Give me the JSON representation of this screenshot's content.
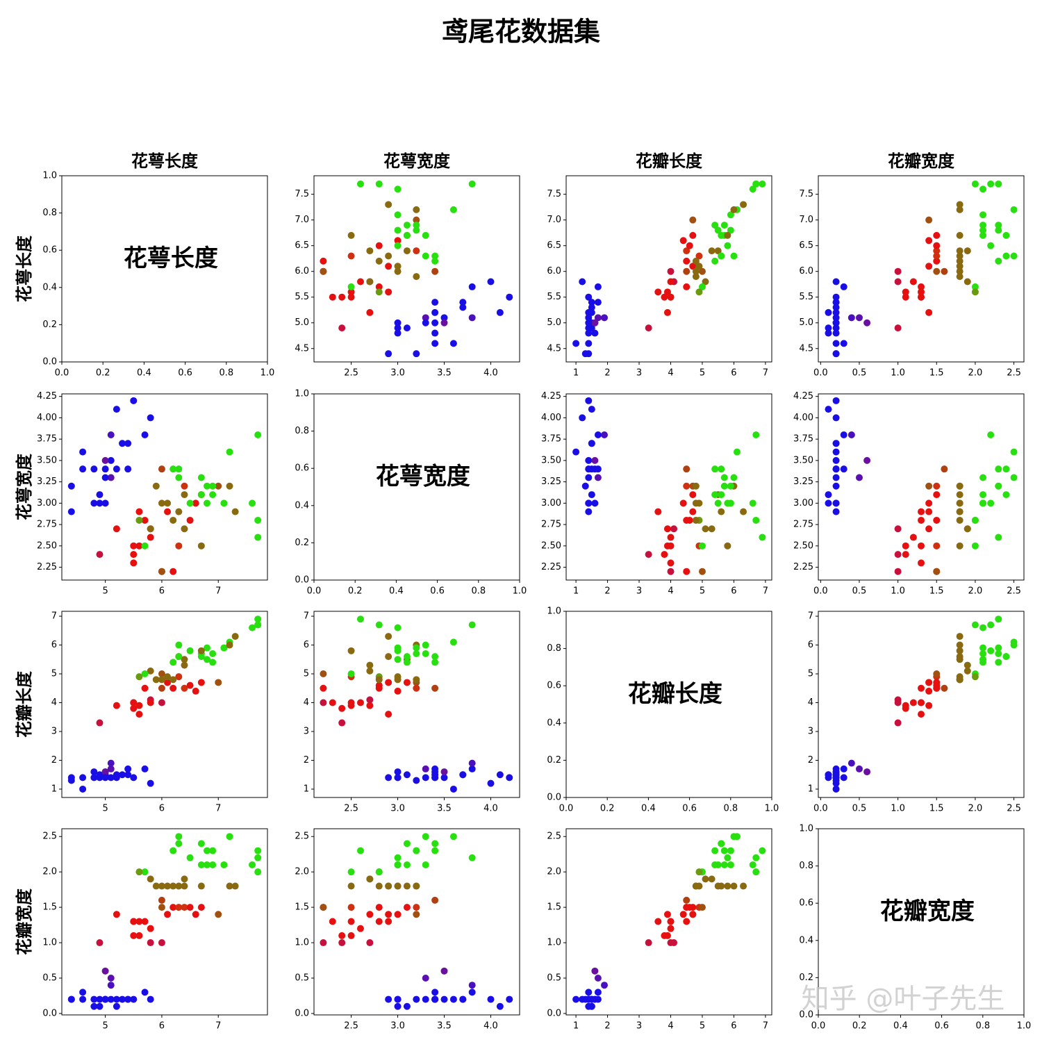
{
  "title": "鸢尾花数据集",
  "watermark": "知乎 @叶子先生",
  "dataset": {
    "columns": [
      "花萼长度",
      "花萼宽度",
      "花瓣长度",
      "花瓣宽度"
    ],
    "rows": [
      {
        "values": [
          5.1,
          3.5,
          1.4,
          0.2
        ],
        "color": "#1a0ee6"
      },
      {
        "values": [
          4.9,
          3.0,
          1.4,
          0.2
        ],
        "color": "#1a0ee6"
      },
      {
        "values": [
          4.6,
          3.4,
          1.4,
          0.3
        ],
        "color": "#1a0ee6"
      },
      {
        "values": [
          5.0,
          3.4,
          1.5,
          0.2
        ],
        "color": "#1a0ee6"
      },
      {
        "values": [
          4.4,
          2.9,
          1.4,
          0.2
        ],
        "color": "#1a0ee6"
      },
      {
        "values": [
          5.4,
          3.7,
          1.5,
          0.2
        ],
        "color": "#1a0ee6"
      },
      {
        "values": [
          4.8,
          3.4,
          1.6,
          0.2
        ],
        "color": "#1a0ee6"
      },
      {
        "values": [
          5.8,
          4.0,
          1.2,
          0.2
        ],
        "color": "#1a0ee6"
      },
      {
        "values": [
          5.7,
          3.8,
          1.7,
          0.3
        ],
        "color": "#1a0ee6"
      },
      {
        "values": [
          5.4,
          3.4,
          1.7,
          0.2
        ],
        "color": "#1a0ee6"
      },
      {
        "values": [
          4.6,
          3.6,
          1.0,
          0.2
        ],
        "color": "#1a0ee6"
      },
      {
        "values": [
          5.1,
          3.3,
          1.7,
          0.5
        ],
        "color": "#5a0fb0"
      },
      {
        "values": [
          5.0,
          3.0,
          1.6,
          0.2
        ],
        "color": "#1a0ee6"
      },
      {
        "values": [
          5.2,
          3.4,
          1.4,
          0.2
        ],
        "color": "#1a0ee6"
      },
      {
        "values": [
          5.5,
          4.2,
          1.4,
          0.2
        ],
        "color": "#1a0ee6"
      },
      {
        "values": [
          5.2,
          4.1,
          1.5,
          0.1
        ],
        "color": "#1a0ee6"
      },
      {
        "values": [
          4.9,
          3.1,
          1.5,
          0.1
        ],
        "color": "#1a0ee6"
      },
      {
        "values": [
          5.0,
          3.5,
          1.6,
          0.6
        ],
        "color": "#6a10a0"
      },
      {
        "values": [
          4.4,
          3.2,
          1.3,
          0.2
        ],
        "color": "#1a0ee6"
      },
      {
        "values": [
          5.1,
          3.8,
          1.9,
          0.4
        ],
        "color": "#4a10c0"
      },
      {
        "values": [
          5.3,
          3.7,
          1.5,
          0.2
        ],
        "color": "#1a0ee6"
      },
      {
        "values": [
          5.0,
          3.3,
          1.4,
          0.2
        ],
        "color": "#1a0ee6"
      },
      {
        "values": [
          4.8,
          3.0,
          1.4,
          0.1
        ],
        "color": "#1a0ee6"
      },
      {
        "values": [
          7.0,
          3.2,
          4.7,
          1.4
        ],
        "color": "#a05010"
      },
      {
        "values": [
          6.4,
          3.2,
          4.5,
          1.5
        ],
        "color": "#d03010"
      },
      {
        "values": [
          5.5,
          2.3,
          4.0,
          1.3
        ],
        "color": "#e61010"
      },
      {
        "values": [
          6.5,
          2.8,
          4.6,
          1.5
        ],
        "color": "#e61010"
      },
      {
        "values": [
          5.7,
          2.8,
          4.5,
          1.3
        ],
        "color": "#e61010"
      },
      {
        "values": [
          4.9,
          2.4,
          3.3,
          1.0
        ],
        "color": "#c8103c"
      },
      {
        "values": [
          5.2,
          2.7,
          3.9,
          1.4
        ],
        "color": "#e61010"
      },
      {
        "values": [
          6.0,
          2.2,
          4.0,
          1.0
        ],
        "color": "#c8103c"
      },
      {
        "values": [
          6.1,
          2.9,
          4.7,
          1.4
        ],
        "color": "#e61010"
      },
      {
        "values": [
          5.6,
          2.9,
          3.6,
          1.3
        ],
        "color": "#e61010"
      },
      {
        "values": [
          5.8,
          2.7,
          4.1,
          1.0
        ],
        "color": "#c8103c"
      },
      {
        "values": [
          6.2,
          2.2,
          4.5,
          1.5
        ],
        "color": "#e61010"
      },
      {
        "values": [
          5.6,
          2.5,
          3.9,
          1.1
        ],
        "color": "#e61010"
      },
      {
        "values": [
          5.9,
          3.2,
          4.8,
          1.8
        ],
        "color": "#8a6a10"
      },
      {
        "values": [
          6.3,
          2.5,
          4.9,
          1.5
        ],
        "color": "#d03010"
      },
      {
        "values": [
          6.6,
          3.0,
          4.4,
          1.4
        ],
        "color": "#e61010"
      },
      {
        "values": [
          5.5,
          2.4,
          3.8,
          1.1
        ],
        "color": "#e61010"
      },
      {
        "values": [
          5.5,
          2.5,
          4.0,
          1.3
        ],
        "color": "#e61010"
      },
      {
        "values": [
          6.0,
          3.4,
          4.5,
          1.6
        ],
        "color": "#b04010"
      },
      {
        "values": [
          6.7,
          3.1,
          4.7,
          1.5
        ],
        "color": "#e61010"
      },
      {
        "values": [
          5.8,
          2.6,
          4.0,
          1.2
        ],
        "color": "#e61010"
      },
      {
        "values": [
          6.3,
          3.3,
          6.0,
          2.5
        ],
        "color": "#28e010"
      },
      {
        "values": [
          5.8,
          2.7,
          5.1,
          1.9
        ],
        "color": "#8a6a10"
      },
      {
        "values": [
          7.1,
          3.0,
          5.9,
          2.1
        ],
        "color": "#28e010"
      },
      {
        "values": [
          6.3,
          2.9,
          5.6,
          1.8
        ],
        "color": "#8a6a10"
      },
      {
        "values": [
          6.5,
          3.0,
          5.8,
          2.2
        ],
        "color": "#28e010"
      },
      {
        "values": [
          7.6,
          3.0,
          6.6,
          2.1
        ],
        "color": "#28e010"
      },
      {
        "values": [
          7.3,
          2.9,
          6.3,
          1.8
        ],
        "color": "#8a6a10"
      },
      {
        "values": [
          7.2,
          3.6,
          6.1,
          2.5
        ],
        "color": "#28e010"
      },
      {
        "values": [
          6.4,
          2.7,
          5.3,
          1.9
        ],
        "color": "#8a6a10"
      },
      {
        "values": [
          6.8,
          3.0,
          5.5,
          2.1
        ],
        "color": "#28e010"
      },
      {
        "values": [
          5.7,
          2.5,
          5.0,
          2.0
        ],
        "color": "#28e010"
      },
      {
        "values": [
          7.7,
          3.8,
          6.7,
          2.2
        ],
        "color": "#28e010"
      },
      {
        "values": [
          7.7,
          2.6,
          6.9,
          2.3
        ],
        "color": "#28e010"
      },
      {
        "values": [
          6.0,
          2.2,
          5.0,
          1.5
        ],
        "color": "#a05010"
      },
      {
        "values": [
          6.9,
          3.2,
          5.7,
          2.3
        ],
        "color": "#28e010"
      },
      {
        "values": [
          5.6,
          2.8,
          4.9,
          2.0
        ],
        "color": "#6a9a10"
      },
      {
        "values": [
          7.7,
          2.8,
          6.7,
          2.0
        ],
        "color": "#28e010"
      },
      {
        "values": [
          6.7,
          3.3,
          5.7,
          2.1
        ],
        "color": "#28e010"
      },
      {
        "values": [
          7.2,
          3.2,
          6.0,
          1.8
        ],
        "color": "#8a6a10"
      },
      {
        "values": [
          6.2,
          2.8,
          4.8,
          1.8
        ],
        "color": "#8a6a10"
      },
      {
        "values": [
          6.1,
          3.0,
          4.9,
          1.8
        ],
        "color": "#8a6a10"
      },
      {
        "values": [
          6.4,
          3.1,
          5.5,
          1.8
        ],
        "color": "#8a6a10"
      },
      {
        "values": [
          6.0,
          3.0,
          4.8,
          1.8
        ],
        "color": "#8a6a10"
      },
      {
        "values": [
          6.9,
          3.1,
          5.4,
          2.1
        ],
        "color": "#28e010"
      },
      {
        "values": [
          6.7,
          3.1,
          5.6,
          2.4
        ],
        "color": "#28e010"
      },
      {
        "values": [
          6.8,
          3.2,
          5.9,
          2.3
        ],
        "color": "#28e010"
      },
      {
        "values": [
          6.7,
          2.5,
          5.8,
          1.8
        ],
        "color": "#8a6a10"
      },
      {
        "values": [
          6.3,
          3.4,
          5.6,
          2.4
        ],
        "color": "#28e010"
      },
      {
        "values": [
          6.2,
          3.4,
          5.4,
          2.3
        ],
        "color": "#28e010"
      }
    ]
  },
  "chart_data": [
    {
      "type": "label",
      "xlim": [
        0,
        1
      ],
      "ylim": [
        0,
        1
      ],
      "xticks": [
        {
          "value": 0,
          "label": "0.0"
        },
        0.2,
        0.4,
        0.6,
        0.8,
        {
          "value": 1,
          "label": "1.0"
        }
      ],
      "yticks": [
        {
          "value": 0,
          "label": "0.0"
        },
        0.2,
        0.4,
        0.6,
        0.8,
        {
          "value": 1,
          "label": "1.0"
        }
      ]
    },
    {
      "type": "scatter",
      "xlim": [
        2.1,
        4.31
      ],
      "ylim": [
        4.24,
        7.86
      ],
      "xticks": [
        2.5,
        {
          "value": 3,
          "label": "3.0"
        },
        3.5,
        {
          "value": 4,
          "label": "4.0"
        }
      ],
      "yticks": [
        4.5,
        {
          "value": 5,
          "label": "5.0"
        },
        5.5,
        {
          "value": 6,
          "label": "6.0"
        },
        6.5,
        {
          "value": 7,
          "label": "7.0"
        },
        7.5
      ]
    },
    {
      "type": "scatter",
      "xlim": [
        0.69,
        7.2
      ],
      "ylim": [
        4.24,
        7.86
      ],
      "xticks": [
        1,
        2,
        3,
        4,
        5,
        6,
        7
      ],
      "yticks": [
        4.5,
        {
          "value": 5,
          "label": "5.0"
        },
        5.5,
        {
          "value": 6,
          "label": "6.0"
        },
        6.5,
        {
          "value": 7,
          "label": "7.0"
        },
        7.5
      ]
    },
    {
      "type": "scatter",
      "xlim": [
        -0.03,
        2.63
      ],
      "ylim": [
        4.24,
        7.86
      ],
      "xticks": [
        {
          "value": 0,
          "label": "0.0"
        },
        0.5,
        {
          "value": 1,
          "label": "1.0"
        },
        1.5,
        {
          "value": 2,
          "label": "2.0"
        },
        2.5
      ],
      "yticks": [
        4.5,
        {
          "value": 5,
          "label": "5.0"
        },
        5.5,
        {
          "value": 6,
          "label": "6.0"
        },
        6.5,
        {
          "value": 7,
          "label": "7.0"
        },
        7.5
      ]
    },
    {
      "type": "scatter",
      "xlim": [
        4.23,
        7.87
      ],
      "ylim": [
        2.1,
        4.28
      ],
      "xticks": [
        5,
        6,
        7
      ],
      "yticks": [
        2.25,
        {
          "value": 2.5,
          "label": "2.50"
        },
        2.75,
        {
          "value": 3,
          "label": "3.00"
        },
        3.25,
        {
          "value": 3.5,
          "label": "3.50"
        },
        3.75,
        {
          "value": 4,
          "label": "4.00"
        },
        4.25
      ]
    },
    {
      "type": "label",
      "xlim": [
        0,
        1
      ],
      "ylim": [
        0,
        1
      ],
      "xticks": [
        {
          "value": 0,
          "label": "0.0"
        },
        0.2,
        0.4,
        0.6,
        0.8,
        {
          "value": 1,
          "label": "1.0"
        }
      ],
      "yticks": [
        {
          "value": 0,
          "label": "0.0"
        },
        0.2,
        0.4,
        0.6,
        0.8,
        {
          "value": 1,
          "label": "1.0"
        }
      ]
    },
    {
      "type": "scatter",
      "xlim": [
        0.69,
        7.2
      ],
      "ylim": [
        2.1,
        4.28
      ],
      "xticks": [
        1,
        2,
        3,
        4,
        5,
        6,
        7
      ],
      "yticks": [
        2.25,
        {
          "value": 2.5,
          "label": "2.50"
        },
        2.75,
        {
          "value": 3,
          "label": "3.00"
        },
        3.25,
        {
          "value": 3.5,
          "label": "3.50"
        },
        3.75,
        {
          "value": 4,
          "label": "4.00"
        },
        4.25
      ]
    },
    {
      "type": "scatter",
      "xlim": [
        -0.03,
        2.63
      ],
      "ylim": [
        2.1,
        4.28
      ],
      "xticks": [
        {
          "value": 0,
          "label": "0.0"
        },
        0.5,
        {
          "value": 1,
          "label": "1.0"
        },
        1.5,
        {
          "value": 2,
          "label": "2.0"
        },
        2.5
      ],
      "yticks": [
        2.25,
        {
          "value": 2.5,
          "label": "2.50"
        },
        2.75,
        {
          "value": 3,
          "label": "3.00"
        },
        3.25,
        {
          "value": 3.5,
          "label": "3.50"
        },
        3.75,
        {
          "value": 4,
          "label": "4.00"
        },
        4.25
      ]
    },
    {
      "type": "scatter",
      "xlim": [
        4.23,
        7.87
      ],
      "ylim": [
        0.71,
        7.17
      ],
      "xticks": [
        5,
        6,
        7
      ],
      "yticks": [
        1,
        2,
        3,
        4,
        5,
        6,
        7
      ]
    },
    {
      "type": "scatter",
      "xlim": [
        2.1,
        4.31
      ],
      "ylim": [
        0.71,
        7.17
      ],
      "xticks": [
        2.5,
        {
          "value": 3,
          "label": "3.0"
        },
        3.5,
        {
          "value": 4,
          "label": "4.0"
        }
      ],
      "yticks": [
        1,
        2,
        3,
        4,
        5,
        6,
        7
      ]
    },
    {
      "type": "label",
      "xlim": [
        0,
        1
      ],
      "ylim": [
        0,
        1
      ],
      "xticks": [
        {
          "value": 0,
          "label": "0.0"
        },
        0.2,
        0.4,
        0.6,
        0.8,
        {
          "value": 1,
          "label": "1.0"
        }
      ],
      "yticks": [
        {
          "value": 0,
          "label": "0.0"
        },
        0.2,
        0.4,
        0.6,
        0.8,
        {
          "value": 1,
          "label": "1.0"
        }
      ]
    },
    {
      "type": "scatter",
      "xlim": [
        -0.03,
        2.63
      ],
      "ylim": [
        0.71,
        7.17
      ],
      "xticks": [
        {
          "value": 0,
          "label": "0.0"
        },
        0.5,
        {
          "value": 1,
          "label": "1.0"
        },
        1.5,
        {
          "value": 2,
          "label": "2.0"
        },
        2.5
      ],
      "yticks": [
        1,
        2,
        3,
        4,
        5,
        6,
        7
      ]
    },
    {
      "type": "scatter",
      "xlim": [
        4.23,
        7.87
      ],
      "ylim": [
        -0.02,
        2.61
      ],
      "xticks": [
        5,
        6,
        7
      ],
      "yticks": [
        {
          "value": 0,
          "label": "0.0"
        },
        0.5,
        {
          "value": 1,
          "label": "1.0"
        },
        1.5,
        {
          "value": 2,
          "label": "2.0"
        },
        2.5
      ]
    },
    {
      "type": "scatter",
      "xlim": [
        2.1,
        4.31
      ],
      "ylim": [
        -0.02,
        2.61
      ],
      "xticks": [
        2.5,
        {
          "value": 3,
          "label": "3.0"
        },
        3.5,
        {
          "value": 4,
          "label": "4.0"
        }
      ],
      "yticks": [
        {
          "value": 0,
          "label": "0.0"
        },
        0.5,
        {
          "value": 1,
          "label": "1.0"
        },
        1.5,
        {
          "value": 2,
          "label": "2.0"
        },
        2.5
      ]
    },
    {
      "type": "scatter",
      "xlim": [
        0.69,
        7.2
      ],
      "ylim": [
        -0.02,
        2.61
      ],
      "xticks": [
        1,
        2,
        3,
        4,
        5,
        6,
        7
      ],
      "yticks": [
        {
          "value": 0,
          "label": "0.0"
        },
        0.5,
        {
          "value": 1,
          "label": "1.0"
        },
        1.5,
        {
          "value": 2,
          "label": "2.0"
        },
        2.5
      ]
    },
    {
      "type": "label",
      "xlim": [
        0,
        1
      ],
      "ylim": [
        0,
        1
      ],
      "xticks": [
        {
          "value": 0,
          "label": "0.0"
        },
        0.2,
        0.4,
        0.6,
        0.8,
        {
          "value": 1,
          "label": "1.0"
        }
      ],
      "yticks": [
        {
          "value": 0,
          "label": "0.0"
        },
        0.2,
        0.4,
        0.6,
        0.8,
        {
          "value": 1,
          "label": "1.0"
        }
      ]
    }
  ]
}
